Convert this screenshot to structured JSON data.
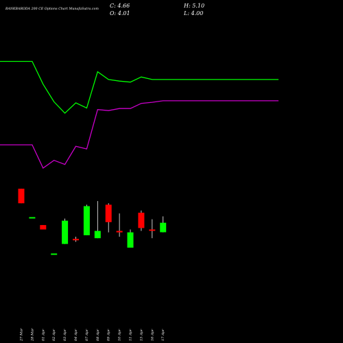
{
  "header": {
    "title": "BANKBARODA 200 CE Options Chart MunafaSutra.com",
    "close": "C: 4.66",
    "open": "O: 4.01",
    "high": "H: 5.10",
    "low": "L: 4.00"
  },
  "colors": {
    "background": "#000000",
    "up": "#00ff00",
    "down": "#ff0000",
    "upper_line": "#00ff00",
    "lower_line": "#cc00cc",
    "text": "#ffffff"
  },
  "chart_data": {
    "type": "candlestick",
    "dates": [
      "27 Mar",
      "28 Mar",
      "01 Apr",
      "02 Apr",
      "03 Apr",
      "04 Apr",
      "07 Apr",
      "08 Apr",
      "09 Apr",
      "10 Apr",
      "11 Apr",
      "15 Apr",
      "16 Apr",
      "17 Apr"
    ],
    "open": [
      7.0,
      null,
      4.5,
      null,
      3.2,
      3.55,
      3.8,
      3.6,
      5.9,
      4.1,
      2.95,
      5.35,
      4.15,
      4.01
    ],
    "high": [
      7.0,
      null,
      4.5,
      null,
      4.95,
      3.7,
      5.9,
      6.15,
      6.0,
      5.3,
      4.2,
      5.5,
      4.9,
      5.1
    ],
    "low": [
      6.0,
      null,
      4.2,
      null,
      3.2,
      3.35,
      3.8,
      3.6,
      4.0,
      3.7,
      2.95,
      4.1,
      3.6,
      4.0
    ],
    "close": [
      6.0,
      5.0,
      4.2,
      2.5,
      4.8,
      3.45,
      5.8,
      4.1,
      4.7,
      4.0,
      4.0,
      4.3,
      4.1,
      4.66
    ],
    "upper_line": [
      30.0,
      30.0,
      25.6,
      22.2,
      20.0,
      22.0,
      21.0,
      28.0,
      26.5,
      26.2,
      26.0,
      27.0,
      26.5,
      26.5
    ],
    "lower_line": [
      13.9,
      13.9,
      9.4,
      10.9,
      10.1,
      13.6,
      13.1,
      20.7,
      20.5,
      20.9,
      20.9,
      21.9,
      22.1,
      22.4
    ]
  }
}
